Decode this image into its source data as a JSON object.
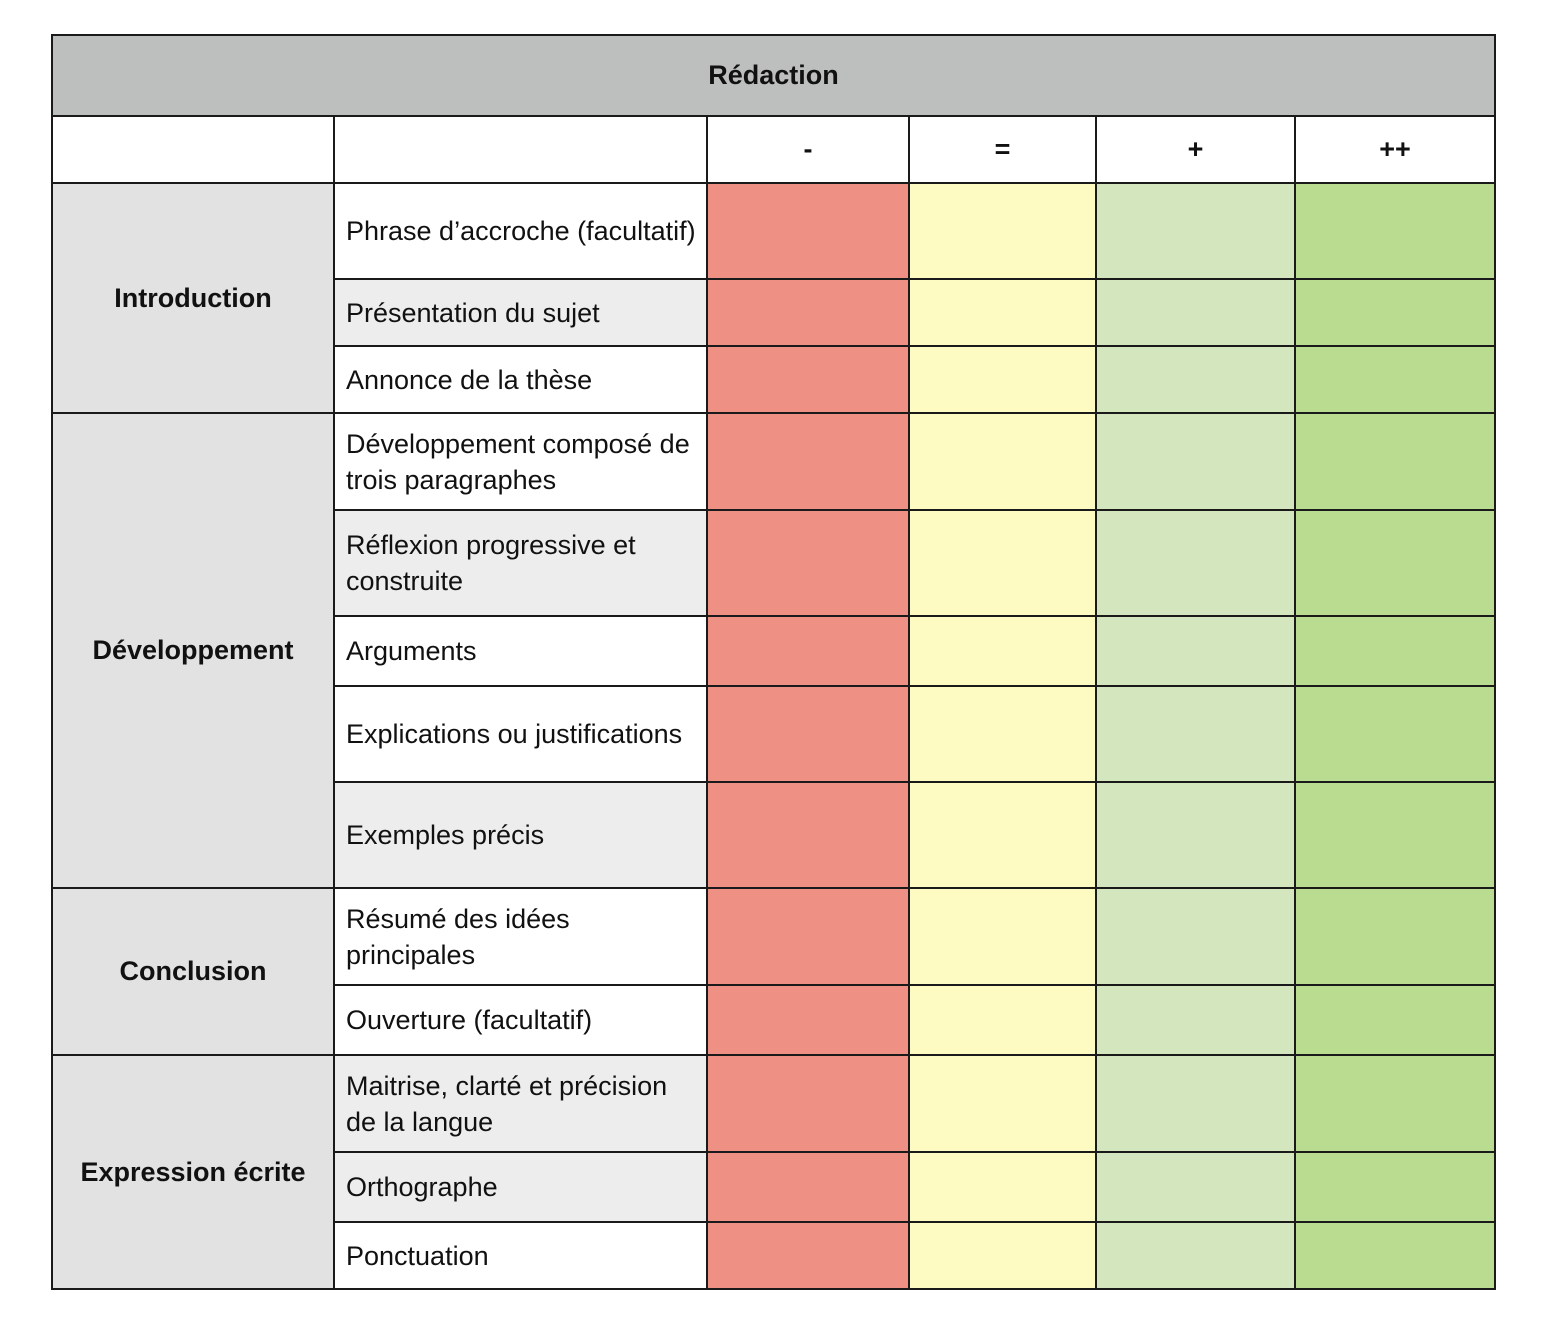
{
  "title": "Rédaction",
  "header": {
    "blank_label": "",
    "criterion_label": "",
    "levels": [
      "-",
      "=",
      "+",
      "++"
    ]
  },
  "colors": {
    "title_bg": "#bdbfbe",
    "section_bg": "#e2e2e2",
    "criterion_row_white": "#ffffff",
    "criterion_row_gray": "#ededed",
    "level_minus": "#ee9083",
    "level_equal": "#fdfac2",
    "level_plus": "#d3e6bd",
    "level_plusplus": "#badc91",
    "border": "#1a1a1a"
  },
  "sections": [
    {
      "name": "Introduction",
      "criteria": [
        {
          "label": "Phrase d’accroche (facultatif)",
          "shade": "white"
        },
        {
          "label": "Présentation du sujet",
          "shade": "gray"
        },
        {
          "label": "Annonce de la thèse",
          "shade": "white"
        }
      ]
    },
    {
      "name": "Développement",
      "criteria": [
        {
          "label": "Développement composé de trois paragraphes",
          "shade": "white"
        },
        {
          "label": "Réflexion progressive et construite",
          "shade": "gray"
        },
        {
          "label": "Arguments",
          "shade": "white"
        },
        {
          "label": "Explications ou justifications",
          "shade": "white"
        },
        {
          "label": "Exemples précis",
          "shade": "gray"
        }
      ]
    },
    {
      "name": "Conclusion",
      "criteria": [
        {
          "label": "Résumé des idées principales",
          "shade": "white"
        },
        {
          "label": "Ouverture (facultatif)",
          "shade": "white"
        }
      ]
    },
    {
      "name": "Expression écrite",
      "criteria": [
        {
          "label": "Maitrise, clarté et précision de la langue",
          "shade": "gray"
        },
        {
          "label": "Orthographe",
          "shade": "gray"
        },
        {
          "label": "Ponctuation",
          "shade": "white"
        }
      ]
    }
  ]
}
